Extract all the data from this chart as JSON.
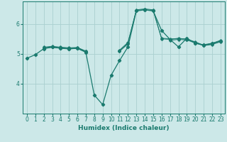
{
  "xlabel": "Humidex (Indice chaleur)",
  "bg_color": "#cce8e8",
  "grid_color": "#aad0d0",
  "line_color": "#1a7a6e",
  "x_ticks": [
    0,
    1,
    2,
    3,
    4,
    5,
    6,
    7,
    8,
    9,
    10,
    11,
    12,
    13,
    14,
    15,
    16,
    17,
    18,
    19,
    20,
    21,
    22,
    23
  ],
  "xlim": [
    -0.5,
    23.5
  ],
  "ylim": [
    3.0,
    6.75
  ],
  "y_ticks": [
    4,
    5,
    6
  ],
  "series": [
    [
      4.85,
      4.97,
      5.17,
      5.22,
      5.19,
      5.17,
      5.18,
      5.05,
      3.62,
      3.3,
      4.28,
      4.77,
      5.23,
      6.43,
      6.47,
      6.43,
      5.78,
      5.48,
      5.23,
      5.52,
      5.35,
      5.3,
      5.35,
      5.42
    ],
    [
      null,
      null,
      5.22,
      5.25,
      5.22,
      5.2,
      5.21,
      5.09,
      null,
      null,
      null,
      5.1,
      5.35,
      6.47,
      6.5,
      6.47,
      5.5,
      5.48,
      5.52,
      5.48,
      5.4,
      5.28,
      5.35,
      5.45
    ],
    [
      null,
      null,
      5.2,
      5.23,
      5.2,
      5.18,
      5.2,
      5.08,
      null,
      null,
      null,
      5.12,
      5.38,
      6.45,
      6.48,
      6.44,
      5.52,
      5.5,
      5.5,
      5.5,
      5.38,
      5.28,
      5.33,
      5.43
    ],
    [
      null,
      null,
      5.18,
      5.22,
      5.18,
      5.16,
      5.18,
      5.06,
      null,
      null,
      null,
      5.08,
      5.33,
      null,
      null,
      null,
      null,
      5.45,
      5.48,
      5.46,
      5.36,
      5.27,
      5.31,
      5.4
    ]
  ]
}
